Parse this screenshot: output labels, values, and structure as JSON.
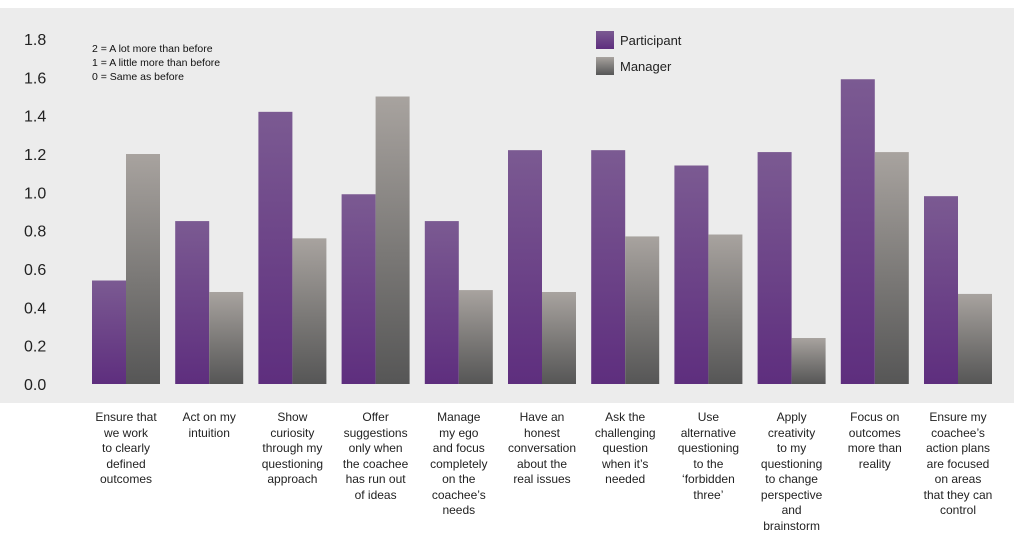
{
  "chart_data": {
    "type": "bar",
    "categories": [
      "Ensure that\nwe work\nto clearly\ndefined\noutcomes",
      "Act on my\nintuition",
      "Show\ncuriosity\nthrough my\nquestioning\napproach",
      "Offer\nsuggestions\nonly when\nthe coachee\nhas run out\nof ideas",
      "Manage\nmy ego\nand focus\ncompletely\non the\ncoachee’s\nneeds",
      "Have an\nhonest\nconversation\nabout the\nreal issues",
      "Ask the\nchallenging\nquestion\nwhen it’s\nneeded",
      "Use\nalternative\nquestioning\nto the\n‘forbidden\nthree’",
      "Apply\ncreativity\nto my\nquestioning\nto change\nperspective\nand\nbrainstorm",
      "Focus on\noutcomes\nmore than\nreality",
      "Ensure my\ncoachee’s\naction plans\nare focused\non areas\nthat they can\ncontrol"
    ],
    "series": [
      {
        "name": "Participant",
        "values": [
          0.54,
          0.85,
          1.42,
          0.99,
          0.85,
          1.22,
          1.22,
          1.14,
          1.21,
          1.59,
          0.98
        ]
      },
      {
        "name": "Manager",
        "values": [
          1.2,
          0.48,
          0.76,
          1.5,
          0.49,
          0.48,
          0.77,
          0.78,
          0.24,
          1.21,
          0.47
        ]
      }
    ],
    "yticks": [
      "0.0",
      "0.2",
      "0.4",
      "0.6",
      "0.8",
      "1.0",
      "1.2",
      "1.4",
      "1.6",
      "1.8"
    ],
    "ylim": [
      0,
      1.8
    ],
    "legend_position": "top-right",
    "annotations": [
      "2 = A lot more than before",
      "1 = A little more than before",
      "0 = Same as before"
    ],
    "colors": {
      "participant_top": "#7b5a92",
      "participant_bottom": "#5e2e7e",
      "manager_top": "#a8a39f",
      "manager_bottom": "#565656",
      "plot_background": "#ececec"
    }
  }
}
